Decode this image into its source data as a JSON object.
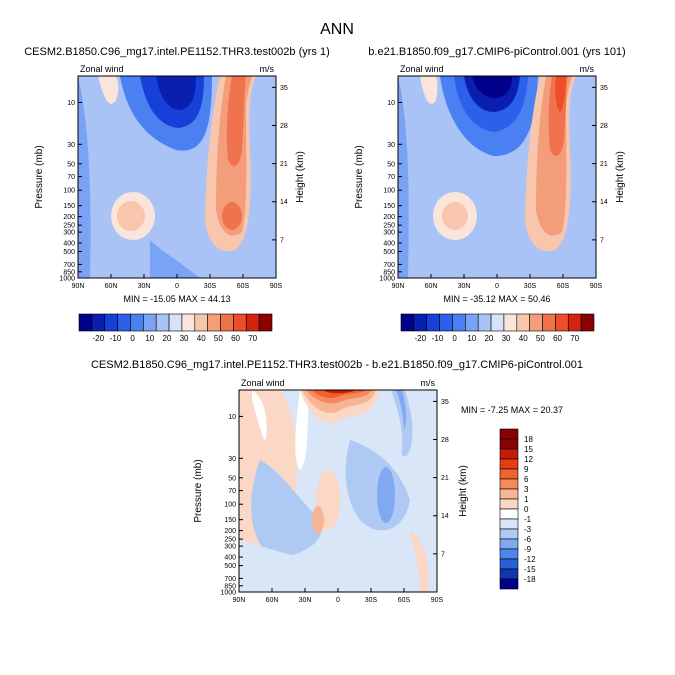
{
  "figure": {
    "main_title": "ANN"
  },
  "chart_data": [
    {
      "type": "contour",
      "title": "CESM2.B1850.C96_mg17.intel.PE1152.THR3.test002b (yrs 1)",
      "left_label": "Zonal wind",
      "units": "m/s",
      "xlabel": "",
      "ylabel": "Pressure (mb)",
      "y2label": "Height (km)",
      "x_ticks": [
        "90N",
        "60N",
        "30N",
        "0",
        "30S",
        "60S",
        "90S"
      ],
      "y_ticks": [
        "10",
        "30",
        "50",
        "70",
        "100",
        "150",
        "200",
        "250",
        "300",
        "400",
        "500",
        "700",
        "850",
        "1000"
      ],
      "y2_ticks": [
        "35",
        "28",
        "21",
        "14",
        "7"
      ],
      "min_max_text": "MIN = -15.05   MAX = 44.13",
      "min": -15.05,
      "max": 44.13,
      "colorbar_labels": [
        "-20",
        "-10",
        "0",
        "10",
        "20",
        "30",
        "40",
        "50",
        "60",
        "70"
      ],
      "colorbar_orientation": "horizontal"
    },
    {
      "type": "contour",
      "title": "b.e21.B1850.f09_g17.CMIP6-piControl.001 (yrs 101)",
      "left_label": "Zonal wind",
      "units": "m/s",
      "xlabel": "",
      "ylabel": "Pressure (mb)",
      "y2label": "Height (km)",
      "x_ticks": [
        "90N",
        "60N",
        "30N",
        "0",
        "30S",
        "60S",
        "90S"
      ],
      "y_ticks": [
        "10",
        "30",
        "50",
        "70",
        "100",
        "150",
        "200",
        "250",
        "300",
        "400",
        "500",
        "700",
        "850",
        "1000"
      ],
      "y2_ticks": [
        "35",
        "28",
        "21",
        "14",
        "7"
      ],
      "min_max_text": "MIN = -35.12   MAX = 50.46",
      "min": -35.12,
      "max": 50.46,
      "colorbar_labels": [
        "-20",
        "-10",
        "0",
        "10",
        "20",
        "30",
        "40",
        "50",
        "60",
        "70"
      ],
      "colorbar_orientation": "horizontal"
    },
    {
      "type": "contour",
      "title": "CESM2.B1850.C96_mg17.intel.PE1152.THR3.test002b - b.e21.B1850.f09_g17.CMIP6-piControl.001",
      "left_label": "Zonal wind",
      "units": "m/s",
      "xlabel": "",
      "ylabel": "Pressure (mb)",
      "y2label": "Height (km)",
      "x_ticks": [
        "90N",
        "60N",
        "30N",
        "0",
        "30S",
        "60S",
        "90S"
      ],
      "y_ticks": [
        "10",
        "30",
        "50",
        "70",
        "100",
        "150",
        "200",
        "250",
        "300",
        "400",
        "500",
        "700",
        "850",
        "1000"
      ],
      "y2_ticks": [
        "35",
        "28",
        "21",
        "14",
        "7"
      ],
      "min_max_text": "MIN = -7.25   MAX = 20.37",
      "min": -7.25,
      "max": 20.37,
      "colorbar_labels": [
        "18",
        "15",
        "12",
        "9",
        "6",
        "3",
        "1",
        "0",
        "-1",
        "-3",
        "-6",
        "-9",
        "-12",
        "-15",
        "-18"
      ],
      "colorbar_orientation": "vertical"
    }
  ],
  "colorbars": {
    "abs_colors": [
      "#00008b",
      "#0a1fb0",
      "#1740d8",
      "#2b60ea",
      "#4a80f2",
      "#7aa3f5",
      "#a9c3f7",
      "#d5e2f9",
      "#fbe5da",
      "#f8c6ad",
      "#f39d7a",
      "#ef744e",
      "#eb4e28",
      "#d6230f",
      "#8b0000"
    ],
    "diff_colors": [
      "#8b0000",
      "#c81a0a",
      "#e83a15",
      "#f0612f",
      "#f48a5e",
      "#f8b495",
      "#fbd8c5",
      "#ffffff",
      "#d8e6f8",
      "#aecaf4",
      "#7faaf0",
      "#4d86ea",
      "#2a5fdb",
      "#1237ad",
      "#00008b"
    ]
  }
}
